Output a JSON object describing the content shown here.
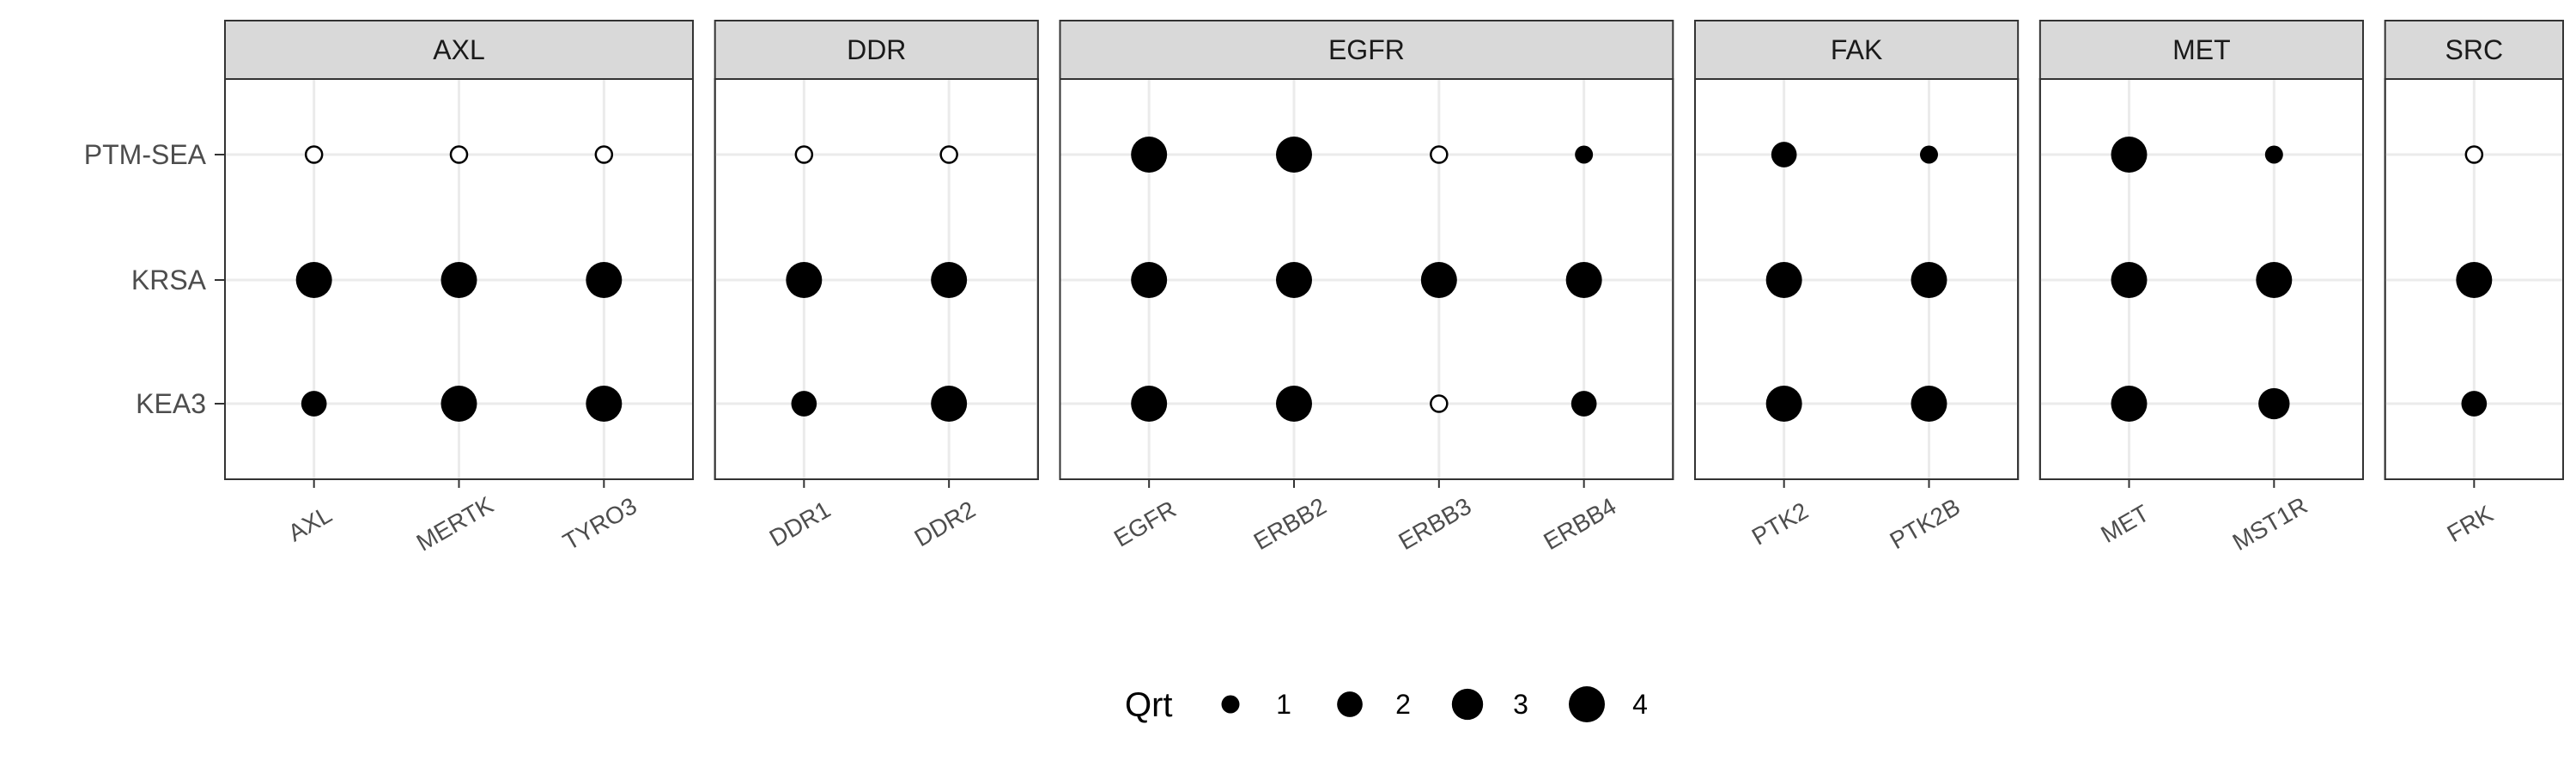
{
  "chart_data": {
    "type": "scatter",
    "title": "",
    "xlabel": "",
    "ylabel": "",
    "grid": true,
    "legend_placement": "bottom",
    "rows": [
      "PTM-SEA",
      "KRSA",
      "KEA3"
    ],
    "panels": [
      {
        "family": "AXL",
        "kinases": [
          "AXL",
          "MERTK",
          "TYRO3"
        ],
        "values": {
          "PTM-SEA": [
            null,
            null,
            null
          ],
          "KRSA": [
            4,
            4,
            4
          ],
          "KEA3": [
            2,
            4,
            4
          ]
        }
      },
      {
        "family": "DDR",
        "kinases": [
          "DDR1",
          "DDR2"
        ],
        "values": {
          "PTM-SEA": [
            null,
            null
          ],
          "KRSA": [
            4,
            4
          ],
          "KEA3": [
            2,
            4
          ]
        }
      },
      {
        "family": "EGFR",
        "kinases": [
          "EGFR",
          "ERBB2",
          "ERBB3",
          "ERBB4"
        ],
        "values": {
          "PTM-SEA": [
            4,
            4,
            null,
            1
          ],
          "KRSA": [
            4,
            4,
            4,
            4
          ],
          "KEA3": [
            4,
            4,
            null,
            2
          ]
        }
      },
      {
        "family": "FAK",
        "kinases": [
          "PTK2",
          "PTK2B"
        ],
        "values": {
          "PTM-SEA": [
            2,
            1
          ],
          "KRSA": [
            4,
            4
          ],
          "KEA3": [
            4,
            4
          ]
        }
      },
      {
        "family": "MET",
        "kinases": [
          "MET",
          "MST1R"
        ],
        "values": {
          "PTM-SEA": [
            4,
            1
          ],
          "KRSA": [
            4,
            4
          ],
          "KEA3": [
            4,
            3
          ]
        }
      },
      {
        "family": "SRC",
        "kinases": [
          "FRK"
        ],
        "values": {
          "PTM-SEA": [
            null
          ],
          "KRSA": [
            4
          ],
          "KEA3": [
            2
          ]
        }
      }
    ],
    "missing_marker": "open-circle",
    "legend": {
      "title": "Qrt",
      "levels": [
        1,
        2,
        3,
        4
      ],
      "labels": [
        "1",
        "2",
        "3",
        "4"
      ]
    },
    "colors": {
      "point": "#000000",
      "strip": "#d9d9d9",
      "border": "#333333",
      "grid": "#ebebeb"
    }
  }
}
